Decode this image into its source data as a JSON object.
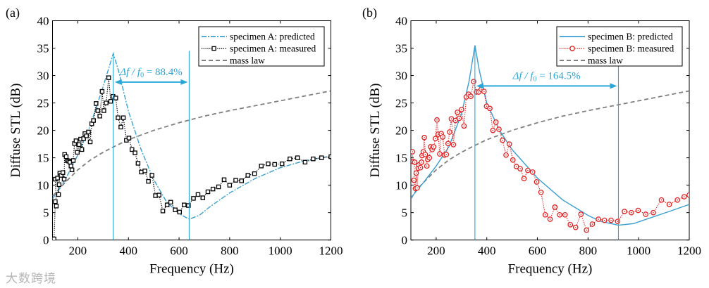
{
  "watermark": "大数跨境",
  "colors": {
    "predicted": "#3a9fd0",
    "marker_line": "#2aa6d6",
    "mass_law": "#808080",
    "measured_A": "#000000",
    "measured_B": "#e02020"
  },
  "chart_data": [
    {
      "type": "line",
      "panel_label": "(a)",
      "xlabel": "Frequency (Hz)",
      "ylabel": "Diffuse STL (dB)",
      "xlim": [
        100,
        1200
      ],
      "ylim": [
        0,
        40
      ],
      "xticks": [
        200,
        400,
        600,
        800,
        1000,
        1200
      ],
      "yticks": [
        0,
        5,
        10,
        15,
        20,
        25,
        30,
        35,
        40
      ],
      "legend_position": "top-right",
      "annotation": {
        "text_pre": "Δf / f",
        "text_sub": "0",
        "text_post": " = 88.4%",
        "f_start": 340,
        "f_end": 640,
        "y": 28.8
      },
      "series": [
        {
          "name": "specimen A: predicted",
          "style": "dashdot",
          "color_key": "predicted",
          "points": [
            [
              100,
              7.5
            ],
            [
              150,
              11
            ],
            [
              200,
              15.5
            ],
            [
              250,
              21
            ],
            [
              300,
              28
            ],
            [
              340,
              34
            ],
            [
              360,
              31
            ],
            [
              400,
              23.5
            ],
            [
              450,
              16.5
            ],
            [
              500,
              11
            ],
            [
              550,
              7
            ],
            [
              600,
              4.8
            ],
            [
              640,
              3.8
            ],
            [
              680,
              4.5
            ],
            [
              720,
              6
            ],
            [
              800,
              8.6
            ],
            [
              900,
              11.2
            ],
            [
              1000,
              13.2
            ],
            [
              1100,
              14.5
            ],
            [
              1200,
              15.3
            ]
          ]
        },
        {
          "name": "specimen A: measured",
          "style": "dotted-square",
          "color_key": "measured_A",
          "points": [
            [
              106,
              0.2
            ],
            [
              111,
              7
            ],
            [
              115,
              6.2
            ],
            [
              111,
              11.1
            ],
            [
              120,
              11.3
            ],
            [
              124,
              8.3
            ],
            [
              126,
              10.1
            ],
            [
              129,
              12.2
            ],
            [
              134,
              11.8
            ],
            [
              141,
              12.3
            ],
            [
              146,
              11.1
            ],
            [
              148,
              15.6
            ],
            [
              154,
              15.2
            ],
            [
              158,
              14.5
            ],
            [
              164,
              14.4
            ],
            [
              169,
              14.2
            ],
            [
              173,
              13.5
            ],
            [
              177,
              12.8
            ],
            [
              182,
              14.5
            ],
            [
              187,
              17.6
            ],
            [
              193,
              18.1
            ],
            [
              198,
              16
            ],
            [
              205,
              17.4
            ],
            [
              211,
              18.4
            ],
            [
              216,
              16.5
            ],
            [
              223,
              18.5
            ],
            [
              228,
              19.4
            ],
            [
              234,
              19
            ],
            [
              242,
              19.7
            ],
            [
              249,
              17.9
            ],
            [
              255,
              21.2
            ],
            [
              262,
              21.8
            ],
            [
              272,
              24.9
            ],
            [
              279,
              23.6
            ],
            [
              287,
              22.6
            ],
            [
              296,
              27.1
            ],
            [
              303,
              23.6
            ],
            [
              312,
              25
            ],
            [
              322,
              29.6
            ],
            [
              330,
              25.3
            ],
            [
              339,
              26.2
            ],
            [
              350,
              25.9
            ],
            [
              359,
              22.3
            ],
            [
              370,
              20.6
            ],
            [
              380,
              22.3
            ],
            [
              392,
              18.2
            ],
            [
              402,
              18.6
            ],
            [
              414,
              16.5
            ],
            [
              426,
              15.9
            ],
            [
              438,
              14
            ],
            [
              451,
              12.4
            ],
            [
              465,
              12.6
            ],
            [
              479,
              10.7
            ],
            [
              493,
              11.8
            ],
            [
              507,
              8.1
            ],
            [
              521,
              8.2
            ],
            [
              536,
              5.3
            ],
            [
              553,
              6.4
            ],
            [
              567,
              6.9
            ],
            [
              585,
              5.5
            ],
            [
              602,
              5.1
            ],
            [
              620,
              6.4
            ],
            [
              637,
              6.3
            ],
            [
              657,
              7.6
            ],
            [
              675,
              8.3
            ],
            [
              694,
              7.7
            ],
            [
              714,
              8.8
            ],
            [
              734,
              9.3
            ],
            [
              756,
              9.7
            ],
            [
              778,
              11
            ],
            [
              800,
              10
            ],
            [
              824,
              10.9
            ],
            [
              847,
              10.8
            ],
            [
              872,
              11.8
            ],
            [
              898,
              12.1
            ],
            [
              925,
              13.5
            ],
            [
              952,
              13.9
            ],
            [
              978,
              13.8
            ],
            [
              1007,
              13.9
            ],
            [
              1038,
              14.8
            ],
            [
              1068,
              15
            ],
            [
              1098,
              14.2
            ],
            [
              1130,
              14.8
            ],
            [
              1163,
              15
            ],
            [
              1200,
              15.2
            ]
          ]
        },
        {
          "name": "mass law",
          "style": "dashed",
          "color_key": "mass_law",
          "points": [
            [
              100,
              8
            ],
            [
              120,
              9
            ],
            [
              150,
              10.5
            ],
            [
              200,
              12.8
            ],
            [
              250,
              14.6
            ],
            [
              300,
              16
            ],
            [
              350,
              17.2
            ],
            [
              400,
              18.3
            ],
            [
              500,
              20
            ],
            [
              600,
              21.4
            ],
            [
              700,
              22.6
            ],
            [
              800,
              23.6
            ],
            [
              900,
              24.5
            ],
            [
              1000,
              25.4
            ],
            [
              1100,
              26.3
            ],
            [
              1200,
              27.2
            ]
          ]
        }
      ]
    },
    {
      "type": "line",
      "panel_label": "(b)",
      "xlabel": "Frequency (Hz)",
      "ylabel": "Diffuse STL (dB)",
      "xlim": [
        100,
        1200
      ],
      "ylim": [
        0,
        40
      ],
      "xticks": [
        200,
        400,
        600,
        800,
        1000,
        1200
      ],
      "yticks": [
        0,
        5,
        10,
        15,
        20,
        25,
        30,
        35,
        40
      ],
      "legend_position": "top-right",
      "annotation": {
        "text_pre": "Δf / f",
        "text_sub": "0",
        "text_post": " = 164.5%",
        "f_start": 353,
        "f_end": 920,
        "y": 28.1
      },
      "series": [
        {
          "name": "specimen B: predicted",
          "style": "solid",
          "color_key": "predicted",
          "points": [
            [
              100,
              7.7
            ],
            [
              150,
              10.5
            ],
            [
              200,
              13.5
            ],
            [
              250,
              17
            ],
            [
              300,
              23
            ],
            [
              330,
              29
            ],
            [
              353,
              35.5
            ],
            [
              370,
              31
            ],
            [
              400,
              25
            ],
            [
              450,
              20
            ],
            [
              500,
              16.5
            ],
            [
              600,
              11.3
            ],
            [
              700,
              7.3
            ],
            [
              800,
              4.5
            ],
            [
              850,
              3.4
            ],
            [
              920,
              2.7
            ],
            [
              980,
              3
            ],
            [
              1050,
              4.1
            ],
            [
              1120,
              5.2
            ],
            [
              1200,
              6.5
            ]
          ]
        },
        {
          "name": "specimen B: measured",
          "style": "dotted-circle",
          "color_key": "measured_B",
          "points": [
            [
              106,
              16.1
            ],
            [
              109,
              14.3
            ],
            [
              115,
              14.2
            ],
            [
              112,
              10.9
            ],
            [
              118,
              9.4
            ],
            [
              121,
              12.2
            ],
            [
              125,
              9.5
            ],
            [
              129,
              13.1
            ],
            [
              132,
              13.7
            ],
            [
              138,
              13.2
            ],
            [
              142,
              14.2
            ],
            [
              144,
              15.4
            ],
            [
              149,
              16.1
            ],
            [
              153,
              18.7
            ],
            [
              157,
              15.6
            ],
            [
              163,
              13.5
            ],
            [
              167,
              14.7
            ],
            [
              173,
              15
            ],
            [
              178,
              17
            ],
            [
              184,
              16.5
            ],
            [
              190,
              17
            ],
            [
              197,
              18.5
            ],
            [
              203,
              21.9
            ],
            [
              208,
              19.3
            ],
            [
              214,
              15.7
            ],
            [
              220,
              19.4
            ],
            [
              226,
              18.8
            ],
            [
              233,
              15.5
            ],
            [
              240,
              15.6
            ],
            [
              247,
              17.6
            ],
            [
              253,
              19.7
            ],
            [
              260,
              22.1
            ],
            [
              268,
              17.4
            ],
            [
              276,
              21.8
            ],
            [
              284,
              23.3
            ],
            [
              291,
              22.2
            ],
            [
              300,
              23.8
            ],
            [
              310,
              20.8
            ],
            [
              319,
              26.1
            ],
            [
              328,
              26.6
            ],
            [
              337,
              26.2
            ],
            [
              348,
              28.9
            ],
            [
              359,
              27
            ],
            [
              368,
              27
            ],
            [
              378,
              27.5
            ],
            [
              389,
              27.1
            ],
            [
              399,
              24.4
            ],
            [
              412,
              24
            ],
            [
              424,
              20
            ],
            [
              436,
              21.5
            ],
            [
              448,
              20.2
            ],
            [
              462,
              18.2
            ],
            [
              476,
              15.5
            ],
            [
              489,
              17.5
            ],
            [
              503,
              14.6
            ],
            [
              517,
              13.4
            ],
            [
              532,
              13
            ],
            [
              547,
              11.2
            ],
            [
              562,
              12.7
            ],
            [
              581,
              12.4
            ],
            [
              597,
              10.6
            ],
            [
              614,
              8.7
            ],
            [
              631,
              4.6
            ],
            [
              650,
              3.8
            ],
            [
              669,
              6
            ],
            [
              688,
              4.6
            ],
            [
              709,
              4.6
            ],
            [
              730,
              2.8
            ],
            [
              751,
              2.3
            ],
            [
              772,
              4.7
            ],
            [
              794,
              1.8
            ],
            [
              817,
              2.9
            ],
            [
              841,
              3.8
            ],
            [
              865,
              3.6
            ],
            [
              891,
              3.6
            ],
            [
              917,
              3.4
            ],
            [
              944,
              5.2
            ],
            [
              971,
              5
            ],
            [
              998,
              5.4
            ],
            [
              1028,
              4.7
            ],
            [
              1058,
              5
            ],
            [
              1090,
              7.3
            ],
            [
              1121,
              6.5
            ],
            [
              1153,
              7.3
            ],
            [
              1180,
              7.9
            ],
            [
              1200,
              8.2
            ]
          ]
        },
        {
          "name": "mass law",
          "style": "dashed",
          "color_key": "mass_law",
          "points": [
            [
              100,
              7.5
            ],
            [
              120,
              9
            ],
            [
              150,
              10.5
            ],
            [
              200,
              12.8
            ],
            [
              250,
              14.6
            ],
            [
              300,
              16
            ],
            [
              350,
              17.2
            ],
            [
              400,
              18.3
            ],
            [
              500,
              20
            ],
            [
              600,
              21.4
            ],
            [
              700,
              22.6
            ],
            [
              800,
              23.6
            ],
            [
              900,
              24.5
            ],
            [
              1000,
              25.4
            ],
            [
              1100,
              26.3
            ],
            [
              1200,
              27.2
            ]
          ]
        }
      ]
    }
  ]
}
